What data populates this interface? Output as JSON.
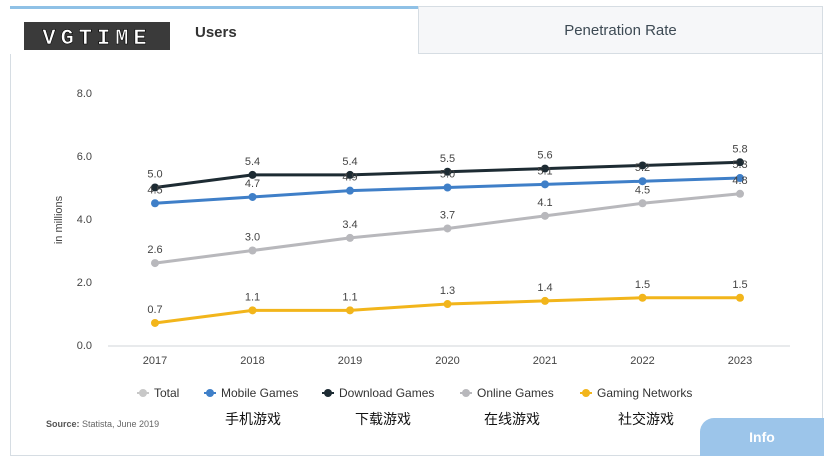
{
  "tabs": {
    "users": "Users",
    "penetration": "Penetration Rate"
  },
  "logo_text": "VGTIME",
  "source": {
    "label": "Source:",
    "text": " Statista, June 2019"
  },
  "info_button": "Info",
  "cn_labels": [
    "手机游戏",
    "下载游戏",
    "在线游戏",
    "社交游戏"
  ],
  "colors": {
    "total": "#c8c8c8",
    "mobile": "#3f7fc8",
    "download": "#1d2b33",
    "online": "#b8b8bc",
    "gaming": "#f2b51b",
    "accent": "#9cc5ea"
  },
  "chart_data": {
    "type": "line",
    "x": [
      "2017",
      "2018",
      "2019",
      "2020",
      "2021",
      "2022",
      "2023"
    ],
    "ylabel": "in millions",
    "ylim": [
      0,
      8
    ],
    "yticks": [
      "0.0",
      "2.0",
      "4.0",
      "6.0",
      "8.0"
    ],
    "grid": false,
    "legend_position": "bottom",
    "legend": [
      "Total",
      "Mobile Games",
      "Download Games",
      "Online Games",
      "Gaming Networks"
    ],
    "series": [
      {
        "name": "Download Games",
        "color": "#1d2b33",
        "values": [
          5.0,
          5.4,
          5.4,
          5.5,
          5.6,
          5.7,
          5.8
        ],
        "labels": [
          "5.0",
          "5.4",
          "5.4",
          "5.5",
          "5.6",
          "",
          "5.8"
        ]
      },
      {
        "name": "Mobile Games",
        "color": "#3f7fc8",
        "values": [
          4.5,
          4.7,
          4.9,
          5.0,
          5.1,
          5.2,
          5.3
        ],
        "labels": [
          "4.5",
          "4.7",
          "4.9",
          "5.0",
          "5.1",
          "5.2",
          "5.3"
        ]
      },
      {
        "name": "Online Games",
        "color": "#b8b8bc",
        "values": [
          2.6,
          3.0,
          3.4,
          3.7,
          4.1,
          4.5,
          4.8
        ],
        "labels": [
          "2.6",
          "3.0",
          "3.4",
          "3.7",
          "4.1",
          "4.5",
          "4.8"
        ]
      },
      {
        "name": "Gaming Networks",
        "color": "#f2b51b",
        "values": [
          0.7,
          1.1,
          1.1,
          1.3,
          1.4,
          1.5,
          1.5
        ],
        "labels": [
          "0.7",
          "1.1",
          "1.1",
          "1.3",
          "1.4",
          "1.5",
          "1.5"
        ]
      }
    ]
  }
}
